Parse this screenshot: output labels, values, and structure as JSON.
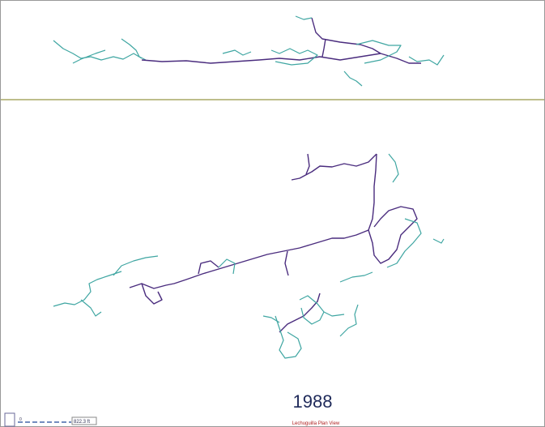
{
  "year": "1988",
  "scale": {
    "zero": "0",
    "length": "822.3 ft"
  },
  "caption": "Lechuguilla Plan View"
}
